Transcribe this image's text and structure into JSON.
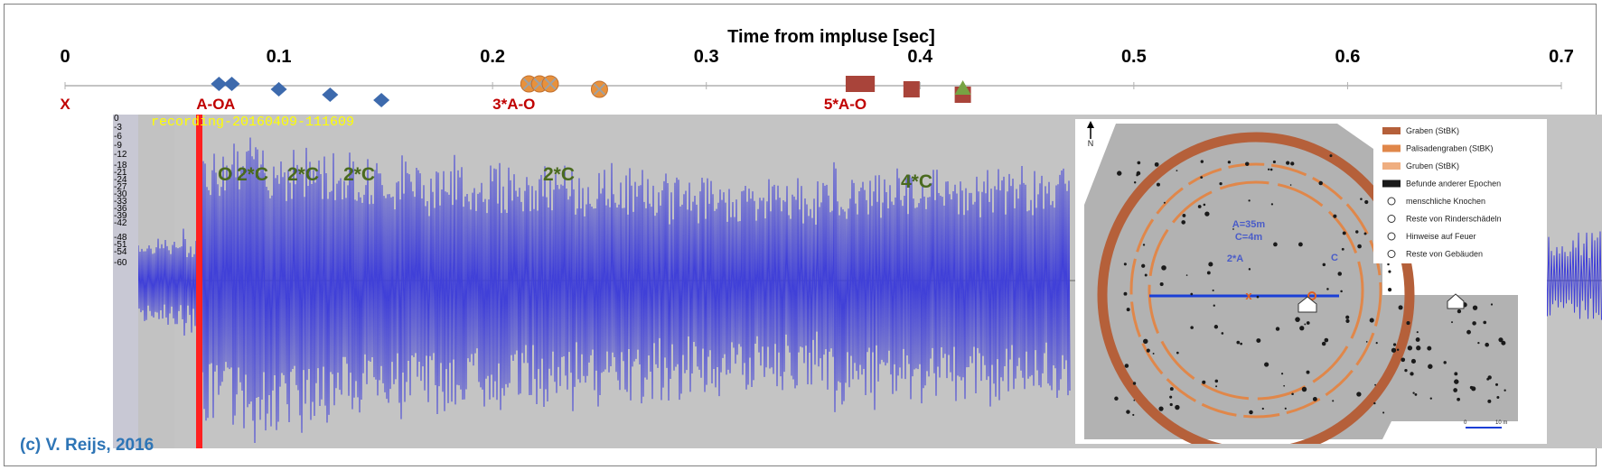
{
  "chart_data": {
    "type": "scatter",
    "xlabel": "Time from impluse [sec]",
    "xlim": [
      0,
      0.7
    ],
    "xticks": [
      "0",
      "0.1",
      "0.2",
      "0.3",
      "0.4",
      "0.5",
      "0.6",
      "0.7"
    ],
    "events": [
      {
        "label": "X",
        "x": 0.0
      },
      {
        "label": "A-O",
        "x": 0.068
      },
      {
        "label": "A",
        "x": 0.077
      },
      {
        "label": "3*A-O",
        "x": 0.21
      },
      {
        "label": "5*A-O",
        "x": 0.365
      }
    ],
    "markers": [
      {
        "shape": "diamond",
        "color": "#3d6aad",
        "x": 0.072,
        "y": 0
      },
      {
        "shape": "diamond",
        "color": "#3d6aad",
        "x": 0.078,
        "y": 0
      },
      {
        "shape": "diamond",
        "color": "#3d6aad",
        "x": 0.1,
        "y": -1
      },
      {
        "shape": "diamond",
        "color": "#3d6aad",
        "x": 0.124,
        "y": -2
      },
      {
        "shape": "diamond",
        "color": "#3d6aad",
        "x": 0.148,
        "y": -3
      },
      {
        "shape": "x-circle",
        "color": "#e8913c",
        "x": 0.217,
        "y": 0
      },
      {
        "shape": "x-circle",
        "color": "#e8913c",
        "x": 0.222,
        "y": 0
      },
      {
        "shape": "x-circle",
        "color": "#e8913c",
        "x": 0.227,
        "y": 0
      },
      {
        "shape": "x-circle",
        "color": "#e8913c",
        "x": 0.25,
        "y": -1
      },
      {
        "shape": "square",
        "color": "#a9443a",
        "x": 0.369,
        "y": 0
      },
      {
        "shape": "square",
        "color": "#a9443a",
        "x": 0.375,
        "y": 0
      },
      {
        "shape": "square",
        "color": "#a9443a",
        "x": 0.396,
        "y": -1
      },
      {
        "shape": "square",
        "color": "#a9443a",
        "x": 0.42,
        "y": -2
      },
      {
        "shape": "triangle",
        "color": "#77a343",
        "x": 0.42,
        "y": -1
      }
    ],
    "waveform": {
      "recording": "recording-20160409-111609",
      "db_labels": [
        "0",
        "-3",
        "-6",
        "-9",
        "-12",
        "-18",
        "-21",
        "-24",
        "-27",
        "-30",
        "-33",
        "-36",
        "-39",
        "-42",
        "-48",
        "-51",
        "-54",
        "-60"
      ],
      "c_labels": [
        "O",
        "2*C",
        "2*C",
        "2*C",
        "2*C",
        "4*C"
      ],
      "color": "#4040d8",
      "background": "#c4c4c4"
    }
  },
  "map": {
    "legend": [
      "Graben (StBK)",
      "Palisadengraben (StBK)",
      "Gruben (StBK)",
      "Befunde anderer Epochen",
      "menschliche Knochen",
      "Reste von Rinderschädeln",
      "Hinweise auf Feuer",
      "Reste von Gebäuden"
    ],
    "legend_colors": [
      "#b5603a",
      "#e0874a",
      "#efae80",
      "#1a1a1a"
    ],
    "north": "N",
    "scale_start": "0",
    "scale_end": "10 m",
    "dims_a": "A=35m",
    "dims_c": "C=4m",
    "label_2a": "2*A",
    "label_c": "C"
  },
  "copyright": "(c) V. Reijs, 2016"
}
